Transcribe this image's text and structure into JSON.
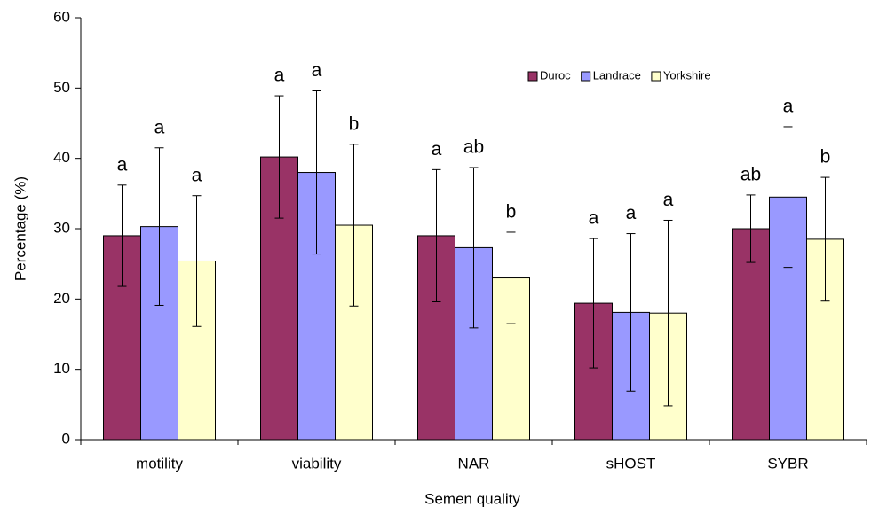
{
  "chart_data": {
    "type": "bar",
    "x_label": "Semen quality",
    "y_label": "Percentage (%)",
    "categories": [
      "motility",
      "viability",
      "NAR",
      "sHOST",
      "SYBR"
    ],
    "series": [
      {
        "name": "Duroc",
        "color": "#993366",
        "values": [
          29.0,
          40.2,
          29.0,
          19.4,
          30.0
        ],
        "errors": [
          7.2,
          8.7,
          9.4,
          9.2,
          4.8
        ],
        "letters": [
          "a",
          "a",
          "a",
          "a",
          "ab"
        ]
      },
      {
        "name": "Landrace",
        "color": "#9999ff",
        "values": [
          30.3,
          38.0,
          27.3,
          18.1,
          34.5
        ],
        "errors": [
          11.2,
          11.6,
          11.4,
          11.2,
          10.0
        ],
        "letters": [
          "a",
          "a",
          "ab",
          "a",
          "a"
        ]
      },
      {
        "name": "Yorkshire",
        "color": "#ffffcc",
        "values": [
          25.4,
          30.5,
          23.0,
          18.0,
          28.5
        ],
        "errors": [
          9.3,
          11.5,
          6.5,
          13.2,
          8.8
        ],
        "letters": [
          "a",
          "b",
          "b",
          "a",
          "b"
        ]
      }
    ],
    "ylim": [
      0,
      60
    ],
    "yticks": [
      0,
      10,
      20,
      30,
      40,
      50,
      60
    ],
    "grid": false,
    "legend": "top-right"
  }
}
